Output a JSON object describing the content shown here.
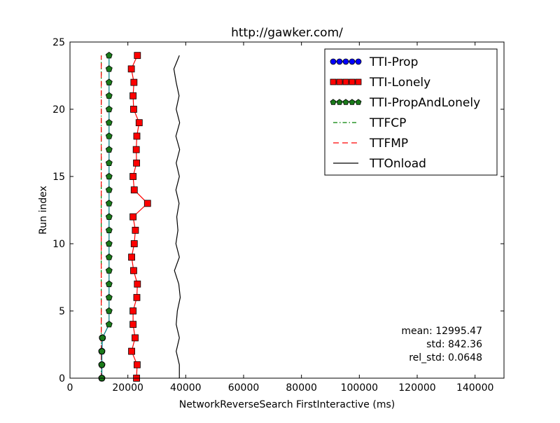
{
  "chart_data": {
    "type": "line",
    "title": "http://gawker.com/",
    "xlabel": "NetworkReverseSearch FirstInteractive (ms)",
    "ylabel": "Run index",
    "xlim": [
      0,
      150000
    ],
    "ylim": [
      0,
      25
    ],
    "xticks": [
      0,
      20000,
      40000,
      60000,
      80000,
      100000,
      120000,
      140000
    ],
    "xtick_labels": [
      "0",
      "20000",
      "40000",
      "60000",
      "80000",
      "100000",
      "120000",
      "140000"
    ],
    "yticks": [
      0,
      5,
      10,
      15,
      20,
      25
    ],
    "ytick_labels": [
      "0",
      "5",
      "10",
      "15",
      "20",
      "25"
    ],
    "grid": false,
    "legend_position": "top-right",
    "series": [
      {
        "name": "TTI-Prop",
        "style": "line-circle",
        "color": "#0000ff",
        "y": [
          0,
          1,
          2,
          3
        ],
        "x": [
          11000,
          11000,
          11000,
          11200
        ]
      },
      {
        "name": "TTI-Lonely",
        "style": "line-square",
        "color": "#ff0000",
        "y": [
          0,
          1,
          2,
          3,
          4,
          5,
          6,
          7,
          8,
          9,
          10,
          11,
          12,
          13,
          14,
          15,
          16,
          17,
          18,
          19,
          20,
          21,
          22,
          23,
          24
        ],
        "x": [
          23000,
          23200,
          21300,
          22500,
          21800,
          21800,
          23100,
          23300,
          22000,
          21300,
          22200,
          22600,
          21800,
          26800,
          22200,
          21800,
          23000,
          22900,
          23100,
          23900,
          22000,
          21800,
          22100,
          21200,
          23300
        ]
      },
      {
        "name": "TTI-PropAndLonely",
        "style": "line-pentagon",
        "color": "#1a7a1a",
        "y": [
          0,
          1,
          2,
          3,
          4,
          5,
          6,
          7,
          8,
          9,
          10,
          11,
          12,
          13,
          14,
          15,
          16,
          17,
          18,
          19,
          20,
          21,
          22,
          23,
          24
        ],
        "x": [
          11000,
          11000,
          11000,
          11200,
          13500,
          13500,
          13500,
          13500,
          13500,
          13500,
          13500,
          13500,
          13500,
          13500,
          13500,
          13500,
          13500,
          13500,
          13500,
          13500,
          13500,
          13500,
          13500,
          13500,
          13500
        ]
      },
      {
        "name": "TTFCP",
        "style": "dashdot",
        "color": "#008000",
        "y": [
          0,
          24
        ],
        "x": [
          10800,
          10800
        ]
      },
      {
        "name": "TTFMP",
        "style": "dashed",
        "color": "#ff0000",
        "y": [
          0,
          24
        ],
        "x": [
          10800,
          10800
        ]
      },
      {
        "name": "TTOnload",
        "style": "solid",
        "color": "#000000",
        "y": [
          0,
          1,
          2,
          3,
          4,
          5,
          6,
          7,
          8,
          9,
          10,
          11,
          12,
          13,
          14,
          15,
          16,
          17,
          18,
          19,
          20,
          21,
          22,
          23,
          24
        ],
        "x": [
          37800,
          37800,
          36700,
          37800,
          36700,
          37100,
          38100,
          37600,
          36100,
          37800,
          36600,
          37300,
          36900,
          37700,
          36600,
          37800,
          36700,
          37900,
          36600,
          37900,
          36700,
          37700,
          36700,
          35900,
          37800
        ]
      }
    ],
    "annotations": [
      "mean: 12995.47",
      "std: 842.36",
      "rel_std: 0.0648"
    ]
  }
}
